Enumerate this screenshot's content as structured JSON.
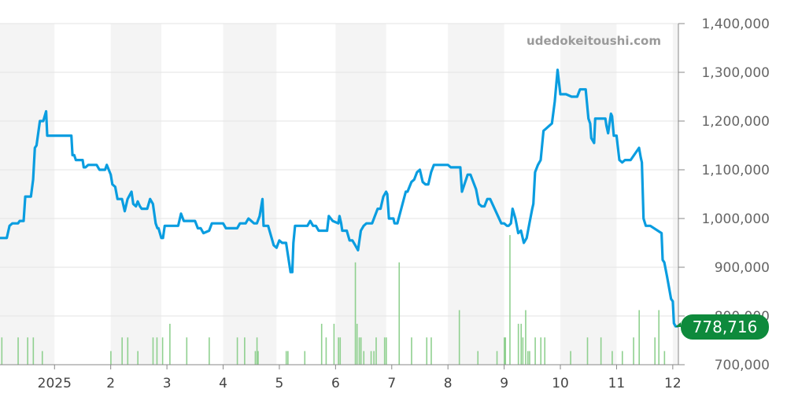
{
  "watermark": "udedokeitoushi.com",
  "current_price_label": "778,716",
  "colors": {
    "line": "#0a9de0",
    "volume": "#8fd08f",
    "badge": "#0e8a3c",
    "band": "#f4f4f4",
    "grid": "#e3e3e3"
  },
  "chart_data": {
    "type": "line",
    "title": "",
    "xlabel": "",
    "ylabel": "",
    "ylim": [
      700000,
      1400000
    ],
    "yticks": [
      700000,
      800000,
      900000,
      1000000,
      1100000,
      1200000,
      1300000,
      1400000
    ],
    "ytick_labels": [
      "700,000",
      "800,000",
      "900,000",
      "1,000,000",
      "1,100,000",
      "1,200,000",
      "1,300,000",
      "1,400,000"
    ],
    "x_unit": "month index (2025-01 = 1.0)",
    "xlim": [
      0.03,
      12.1
    ],
    "x_ticks": [
      1.0,
      2.0,
      3.0,
      4.0,
      5.0,
      6.0,
      7.0,
      8.0,
      9.0,
      10.0,
      11.0,
      12.0
    ],
    "x_tick_labels": [
      "2025",
      "2",
      "3",
      "4",
      "5",
      "6",
      "7",
      "8",
      "9",
      "10",
      "11",
      "12"
    ],
    "shaded_months": [
      [
        0.03,
        1.0
      ],
      [
        2.0,
        2.9
      ],
      [
        4.0,
        4.95
      ],
      [
        6.0,
        6.9
      ],
      [
        8.0,
        9.0
      ],
      [
        10.0,
        11.0
      ],
      [
        12.0,
        12.1
      ]
    ],
    "grid": true,
    "legend": "none",
    "series": [
      {
        "x": [
          0.03,
          0.15,
          0.2,
          0.25,
          0.35,
          0.38,
          0.45,
          0.48,
          0.58,
          0.62,
          0.65,
          0.68,
          0.74,
          0.77,
          0.8,
          0.85,
          0.87,
          0.92,
          0.95,
          1.3,
          1.32,
          1.35,
          1.38,
          1.5,
          1.52,
          1.55,
          1.6,
          1.75,
          1.8,
          1.85,
          1.9,
          1.93,
          2.0,
          2.03,
          2.08,
          2.12,
          2.15,
          2.2,
          2.25,
          2.3,
          2.37,
          2.4,
          2.45,
          2.48,
          2.52,
          2.55,
          2.6,
          2.65,
          2.7,
          2.75,
          2.8,
          2.83,
          2.85,
          2.9,
          2.93,
          2.96,
          3.0,
          3.05,
          3.2,
          3.25,
          3.3,
          3.35,
          3.5,
          3.55,
          3.6,
          3.65,
          3.75,
          3.8,
          3.9,
          4.0,
          4.05,
          4.1,
          4.25,
          4.3,
          4.4,
          4.45,
          4.55,
          4.6,
          4.65,
          4.7,
          4.72,
          4.8,
          4.9,
          4.95,
          5.0,
          5.05,
          5.12,
          5.2,
          5.23,
          5.25,
          5.28,
          5.45,
          5.5,
          5.55,
          5.6,
          5.65,
          5.7,
          5.75,
          5.8,
          5.85,
          5.88,
          5.95,
          6.05,
          6.07,
          6.1,
          6.12,
          6.2,
          6.25,
          6.3,
          6.35,
          6.4,
          6.45,
          6.5,
          6.55,
          6.6,
          6.65,
          6.7,
          6.75,
          6.8,
          6.85,
          6.9,
          6.92,
          6.95,
          7.0,
          7.03,
          7.05,
          7.1,
          7.25,
          7.28,
          7.35,
          7.4,
          7.45,
          7.5,
          7.55,
          7.6,
          7.65,
          7.7,
          7.75,
          7.8,
          8.0,
          8.05,
          8.2,
          8.22,
          8.25,
          8.35,
          8.4,
          8.5,
          8.55,
          8.6,
          8.65,
          8.7,
          8.75,
          8.85,
          8.95,
          9.0,
          9.05,
          9.08,
          9.12,
          9.15,
          9.2,
          9.25,
          9.3,
          9.35,
          9.4,
          9.45,
          9.5,
          9.52,
          9.55,
          9.6,
          9.65,
          9.7,
          9.75,
          9.8,
          9.85,
          9.9,
          9.95,
          10.0,
          10.1,
          10.2,
          10.3,
          10.35,
          10.45,
          10.5,
          10.53,
          10.55,
          10.6,
          10.62,
          10.65,
          10.8,
          10.82,
          10.85,
          10.9,
          10.92,
          10.95,
          11.0,
          11.05,
          11.1,
          11.15,
          11.2,
          11.25,
          11.4,
          11.43,
          11.45,
          11.48,
          11.52,
          11.55,
          11.6,
          11.8,
          11.82,
          11.85,
          11.9,
          11.97,
          12.0,
          12.02,
          12.05,
          12.1
        ],
        "y": [
          960000,
          960000,
          985000,
          990000,
          990000,
          995000,
          995000,
          1045000,
          1045000,
          1080000,
          1145000,
          1150000,
          1200000,
          1200000,
          1200000,
          1220000,
          1170000,
          1170000,
          1170000,
          1170000,
          1130000,
          1130000,
          1120000,
          1120000,
          1105000,
          1105000,
          1110000,
          1110000,
          1100000,
          1100000,
          1100000,
          1110000,
          1090000,
          1070000,
          1065000,
          1040000,
          1040000,
          1040000,
          1015000,
          1040000,
          1055000,
          1030000,
          1025000,
          1035000,
          1025000,
          1020000,
          1020000,
          1020000,
          1040000,
          1030000,
          990000,
          980000,
          980000,
          960000,
          960000,
          985000,
          985000,
          985000,
          985000,
          1010000,
          995000,
          995000,
          995000,
          980000,
          980000,
          970000,
          975000,
          990000,
          990000,
          990000,
          980000,
          980000,
          980000,
          990000,
          990000,
          1000000,
          990000,
          990000,
          1005000,
          1040000,
          985000,
          985000,
          945000,
          940000,
          955000,
          950000,
          950000,
          890000,
          890000,
          950000,
          985000,
          985000,
          985000,
          995000,
          985000,
          985000,
          975000,
          975000,
          975000,
          975000,
          1005000,
          995000,
          990000,
          1005000,
          990000,
          975000,
          975000,
          955000,
          955000,
          945000,
          935000,
          975000,
          985000,
          990000,
          990000,
          990000,
          1005000,
          1020000,
          1020000,
          1045000,
          1055000,
          1050000,
          1000000,
          1000000,
          1000000,
          990000,
          990000,
          1055000,
          1055000,
          1075000,
          1080000,
          1095000,
          1100000,
          1075000,
          1070000,
          1070000,
          1095000,
          1110000,
          1110000,
          1110000,
          1105000,
          1105000,
          1105000,
          1055000,
          1090000,
          1090000,
          1060000,
          1030000,
          1025000,
          1025000,
          1040000,
          1040000,
          1015000,
          990000,
          990000,
          985000,
          985000,
          990000,
          1020000,
          1000000,
          970000,
          975000,
          950000,
          960000,
          990000,
          1020000,
          1030000,
          1095000,
          1110000,
          1120000,
          1180000,
          1185000,
          1190000,
          1195000,
          1240000,
          1305000,
          1255000,
          1255000,
          1250000,
          1250000,
          1265000,
          1265000,
          1205000,
          1195000,
          1165000,
          1155000,
          1205000,
          1205000,
          1205000,
          1190000,
          1175000,
          1215000,
          1210000,
          1170000,
          1170000,
          1120000,
          1115000,
          1120000,
          1120000,
          1120000,
          1145000,
          1125000,
          1115000,
          1000000,
          985000,
          985000,
          985000,
          970000,
          915000,
          910000,
          880000,
          835000,
          830000,
          785000,
          778716,
          778716
        ]
      }
    ],
    "volume_bars": {
      "x": [
        0.06,
        0.35,
        0.52,
        0.62,
        0.78,
        2.0,
        2.2,
        2.3,
        2.48,
        2.75,
        2.82,
        2.92,
        3.05,
        3.35,
        3.75,
        4.25,
        4.38,
        4.57,
        4.6,
        4.62,
        5.12,
        5.15,
        5.45,
        5.75,
        5.83,
        5.97,
        6.05,
        6.08,
        6.35,
        6.38,
        6.42,
        6.45,
        6.5,
        6.63,
        6.68,
        6.72,
        6.87,
        6.9,
        7.13,
        7.35,
        7.62,
        7.7,
        8.2,
        8.53,
        8.87,
        9.0,
        9.02,
        9.1,
        9.25,
        9.3,
        9.33,
        9.38,
        9.42,
        9.45,
        9.55,
        9.65,
        9.72,
        10.18,
        10.48,
        10.72,
        10.92,
        11.1,
        11.3,
        11.4,
        11.68,
        11.75,
        11.85
      ],
      "heights": [
        0.08,
        0.08,
        0.08,
        0.08,
        0.04,
        0.04,
        0.08,
        0.08,
        0.04,
        0.08,
        0.08,
        0.08,
        0.12,
        0.08,
        0.08,
        0.08,
        0.08,
        0.04,
        0.08,
        0.04,
        0.04,
        0.04,
        0.04,
        0.12,
        0.08,
        0.12,
        0.08,
        0.08,
        0.3,
        0.12,
        0.08,
        0.08,
        0.04,
        0.04,
        0.04,
        0.08,
        0.08,
        0.08,
        0.3,
        0.08,
        0.08,
        0.08,
        0.16,
        0.04,
        0.04,
        0.08,
        0.08,
        0.38,
        0.12,
        0.12,
        0.08,
        0.16,
        0.04,
        0.04,
        0.08,
        0.08,
        0.08,
        0.04,
        0.08,
        0.08,
        0.04,
        0.04,
        0.08,
        0.16,
        0.08,
        0.16,
        0.04
      ]
    }
  }
}
